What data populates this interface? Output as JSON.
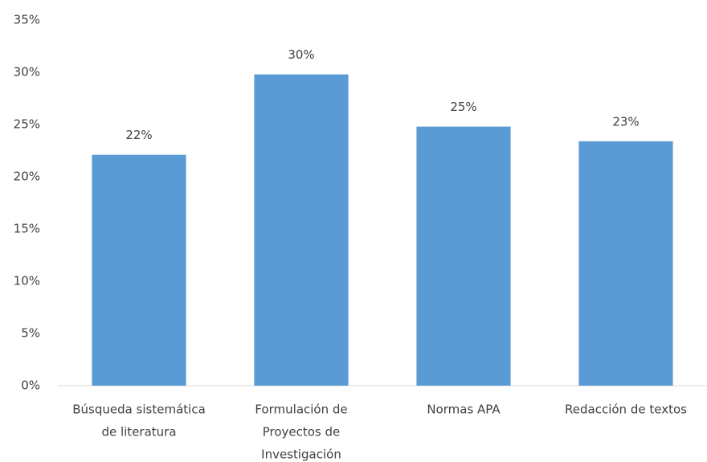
{
  "chart_data": {
    "type": "bar",
    "categories": [
      [
        "Búsqueda sistemática",
        "de literatura"
      ],
      [
        "Formulación de",
        "Proyectos de",
        "Investigación"
      ],
      [
        "Normas APA"
      ],
      [
        "Redacción de textos"
      ]
    ],
    "values": [
      22.1,
      29.8,
      24.8,
      23.4
    ],
    "value_labels": [
      "22%",
      "30%",
      "25%",
      "23%"
    ],
    "color": "#5b9bd5",
    "ylim": [
      0,
      35
    ],
    "yticks": [
      {
        "value": 0,
        "label": "0%"
      },
      {
        "value": 5,
        "label": "5%"
      },
      {
        "value": 10,
        "label": "10%"
      },
      {
        "value": 15,
        "label": "15%"
      },
      {
        "value": 20,
        "label": "20%"
      },
      {
        "value": 25,
        "label": "25%"
      },
      {
        "value": 30,
        "label": "30%"
      },
      {
        "value": 35,
        "label": "35%"
      }
    ],
    "grid": false
  }
}
